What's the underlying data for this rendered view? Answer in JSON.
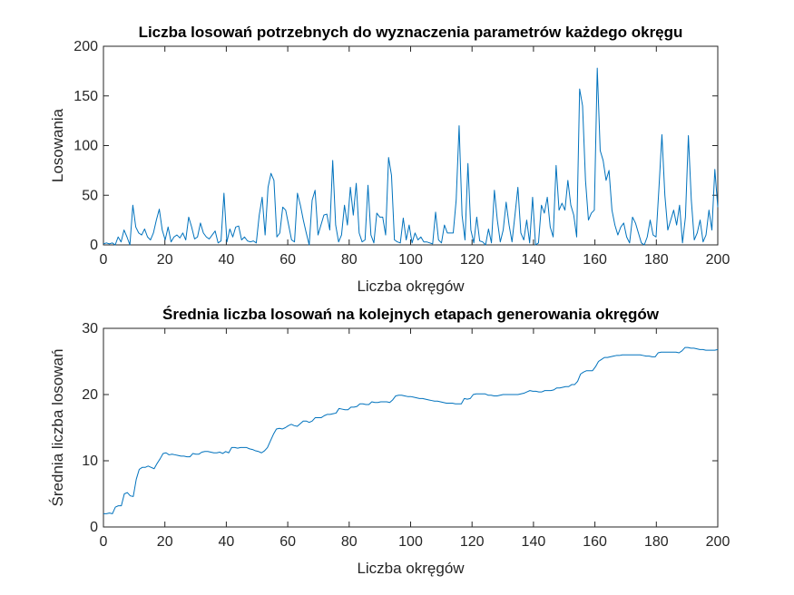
{
  "chart_data": [
    {
      "type": "line",
      "title": "Liczba losowań potrzebnych do wyznaczenia parametrów każdego okręgu",
      "xlabel": "Liczba okręgów",
      "ylabel": "Losowania",
      "xlim": [
        0,
        200
      ],
      "ylim": [
        0,
        200
      ],
      "xticks": [
        0,
        20,
        40,
        60,
        80,
        100,
        120,
        140,
        160,
        180,
        200
      ],
      "yticks": [
        0,
        50,
        100,
        150,
        200
      ],
      "grid": false,
      "color": "#0072bd",
      "series": [
        {
          "values": [
            1,
            2,
            1,
            2,
            0,
            8,
            3,
            15,
            8,
            0,
            40,
            18,
            12,
            10,
            16,
            8,
            5,
            12,
            25,
            36,
            15,
            5,
            18,
            3,
            8,
            10,
            7,
            12,
            5,
            28,
            18,
            6,
            8,
            22,
            12,
            8,
            6,
            10,
            14,
            2,
            4,
            52,
            3,
            16,
            8,
            18,
            19,
            5,
            8,
            4,
            3,
            4,
            2,
            30,
            48,
            10,
            58,
            72,
            65,
            8,
            12,
            38,
            35,
            20,
            5,
            3,
            52,
            40,
            25,
            12,
            0,
            45,
            55,
            10,
            20,
            30,
            31,
            15,
            85,
            20,
            3,
            10,
            40,
            20,
            58,
            30,
            62,
            12,
            3,
            5,
            60,
            10,
            2,
            32,
            28,
            28,
            10,
            88,
            70,
            5,
            3,
            2,
            27,
            5,
            20,
            2,
            12,
            5,
            8,
            3,
            3,
            2,
            1,
            33,
            5,
            2,
            20,
            12,
            12,
            12,
            45,
            120,
            30,
            5,
            82,
            15,
            2,
            28,
            4,
            3,
            0,
            16,
            2,
            55,
            25,
            3,
            15,
            43,
            20,
            3,
            30,
            58,
            12,
            5,
            25,
            2,
            48,
            0,
            2,
            40,
            32,
            48,
            18,
            8,
            80,
            35,
            42,
            35,
            65,
            40,
            30,
            8,
            157,
            140,
            65,
            25,
            32,
            35,
            178,
            95,
            85,
            65,
            75,
            35,
            20,
            10,
            18,
            22,
            8,
            2,
            28,
            22,
            12,
            2,
            0,
            8,
            25,
            10,
            8,
            58,
            111,
            50,
            15,
            25,
            35,
            20,
            40,
            2,
            28,
            110,
            45,
            5,
            12,
            25,
            3,
            10,
            35,
            15,
            76,
            38
          ]
        }
      ]
    },
    {
      "type": "line",
      "title": "Średnia liczba losowań na kolejnych etapach generowania okręgów",
      "xlabel": "Liczba okręgów",
      "ylabel": "Średnia liczba losowań",
      "xlim": [
        0,
        200
      ],
      "ylim": [
        0,
        30
      ],
      "xticks": [
        0,
        20,
        40,
        60,
        80,
        100,
        120,
        140,
        160,
        180,
        200
      ],
      "yticks": [
        0,
        10,
        20,
        30
      ],
      "grid": false,
      "color": "#0072bd",
      "series": [
        {
          "values": [
            2,
            2,
            2.1,
            2,
            3,
            3.2,
            3.2,
            5,
            5.2,
            4.7,
            4.6,
            7.2,
            8.7,
            9,
            9,
            9.2,
            9,
            8.8,
            9.6,
            10.3,
            11.1,
            11.2,
            10.9,
            11,
            10.9,
            10.8,
            10.7,
            10.7,
            10.6,
            10.6,
            11.1,
            11,
            11,
            11.3,
            11.4,
            11.4,
            11.3,
            11.2,
            11.2,
            11.3,
            11.1,
            11.4,
            11.2,
            12,
            12,
            11.9,
            12,
            12,
            12,
            11.8,
            11.7,
            11.5,
            11.4,
            11.2,
            11.5,
            12,
            13,
            14,
            14.8,
            14.9,
            14.8,
            15,
            15.3,
            15.5,
            15.3,
            15.2,
            15.6,
            16,
            16,
            15.8,
            16,
            16.5,
            16.5,
            16.5,
            16.8,
            17,
            17,
            17.1,
            17.2,
            17.9,
            17.8,
            17.7,
            17.7,
            18.1,
            18.1,
            18.2,
            18.6,
            18.6,
            18.5,
            18.5,
            18.9,
            18.8,
            18.8,
            18.9,
            18.9,
            18.9,
            18.8,
            19.2,
            19.8,
            19.9,
            19.9,
            19.8,
            19.7,
            19.7,
            19.6,
            19.5,
            19.4,
            19.4,
            19.3,
            19.2,
            19.1,
            19,
            19,
            18.9,
            18.8,
            18.7,
            18.7,
            18.7,
            18.6,
            18.6,
            18.6,
            19.4,
            19.3,
            19.4,
            20,
            20.1,
            20.1,
            20.1,
            20.1,
            19.9,
            19.9,
            19.8,
            19.8,
            19.9,
            20,
            20,
            20,
            20,
            20,
            20,
            20.1,
            20.2,
            20.4,
            20.6,
            20.5,
            20.5,
            20.4,
            20.4,
            20.6,
            20.6,
            20.6,
            20.7,
            21,
            21,
            21.1,
            21.2,
            21.2,
            21.5,
            21.5,
            22,
            23.1,
            23.4,
            23.6,
            23.6,
            23.6,
            24.2,
            25,
            25.3,
            25.6,
            25.6,
            25.7,
            25.8,
            25.9,
            25.9,
            26,
            26,
            26,
            26,
            26,
            26,
            26,
            25.9,
            25.8,
            25.8,
            25.7,
            25.7,
            26.3,
            26.4,
            26.4,
            26.4,
            26.4,
            26.4,
            26.4,
            26.3,
            26.6,
            27.1,
            27.1,
            27,
            27,
            26.9,
            26.8,
            26.8,
            26.7,
            26.7,
            26.7,
            26.7,
            26.8
          ]
        }
      ]
    }
  ]
}
